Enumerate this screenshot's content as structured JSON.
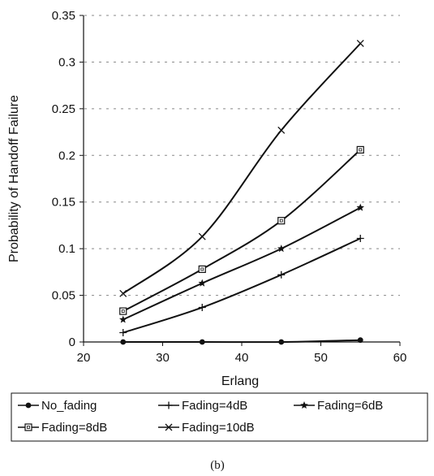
{
  "chart_data": {
    "type": "line",
    "title": "",
    "xlabel": "Erlang",
    "ylabel": "Probability of Handoff Failure",
    "xlim": [
      20,
      60
    ],
    "ylim": [
      0,
      0.35
    ],
    "xticks": [
      "20",
      "30",
      "40",
      "50",
      "60"
    ],
    "yticks": [
      "0",
      "0.05",
      "0.1",
      "0.15",
      "0.2",
      "0.25",
      "0.3",
      "0.35"
    ],
    "x": [
      25,
      35,
      45,
      55
    ],
    "grid": "horizontal-dashed",
    "legend_position": "bottom",
    "series": [
      {
        "name": "No_fading",
        "values": [
          0.0,
          0.0,
          0.0,
          0.002
        ],
        "marker": "dot"
      },
      {
        "name": "Fading=4dB",
        "values": [
          0.01,
          0.037,
          0.072,
          0.111
        ],
        "marker": "plus"
      },
      {
        "name": "Fading=6dB",
        "values": [
          0.024,
          0.063,
          0.1,
          0.144
        ],
        "marker": "star"
      },
      {
        "name": "Fading=8dB",
        "values": [
          0.033,
          0.078,
          0.13,
          0.206
        ],
        "marker": "square"
      },
      {
        "name": "Fading=10dB",
        "values": [
          0.052,
          0.113,
          0.227,
          0.32
        ],
        "marker": "x"
      }
    ]
  },
  "caption": "(b)"
}
